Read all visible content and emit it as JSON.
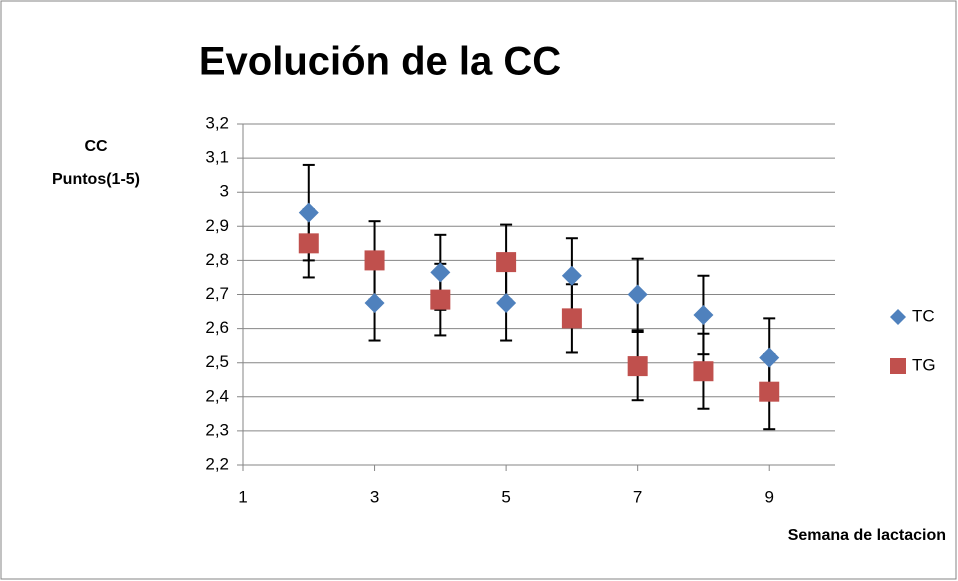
{
  "chart_data": {
    "type": "scatter",
    "title": "Evolución de la CC",
    "ylabel": [
      "CC",
      "Puntos(1-5)"
    ],
    "xlabel": "Semana de lactacion",
    "xlim": [
      1,
      10
    ],
    "xticks": [
      1,
      3,
      5,
      7,
      9
    ],
    "ylim": [
      2.2,
      3.2
    ],
    "yticks": [
      {
        "value": 2.2,
        "label": "2,2"
      },
      {
        "value": 2.3,
        "label": "2,3"
      },
      {
        "value": 2.4,
        "label": "2,4"
      },
      {
        "value": 2.5,
        "label": "2,5"
      },
      {
        "value": 2.6,
        "label": "2,6"
      },
      {
        "value": 2.7,
        "label": "2,7"
      },
      {
        "value": 2.8,
        "label": "2,8"
      },
      {
        "value": 2.9,
        "label": "2,9"
      },
      {
        "value": 3,
        "label": "3"
      },
      {
        "value": 3.1,
        "label": "3,1"
      },
      {
        "value": 3.2,
        "label": "3,2"
      }
    ],
    "grid": true,
    "legend": "right",
    "x": [
      2,
      3,
      4,
      5,
      6,
      7,
      8,
      9
    ],
    "series": [
      {
        "name": "TC",
        "color": "#4f81bd",
        "marker": "diamond",
        "values": [
          2.94,
          2.675,
          2.765,
          2.675,
          2.755,
          2.7,
          2.64,
          2.515
        ],
        "errors": [
          0.14,
          0.11,
          0.11,
          0.11,
          0.11,
          0.105,
          0.115,
          0.115
        ]
      },
      {
        "name": "TG",
        "color": "#c0504d",
        "marker": "square",
        "values": [
          2.85,
          2.8,
          2.685,
          2.795,
          2.63,
          2.49,
          2.475,
          2.415
        ],
        "errors": [
          0.1,
          0.115,
          0.105,
          0.11,
          0.1,
          0.1,
          0.11,
          0.11
        ]
      }
    ]
  }
}
